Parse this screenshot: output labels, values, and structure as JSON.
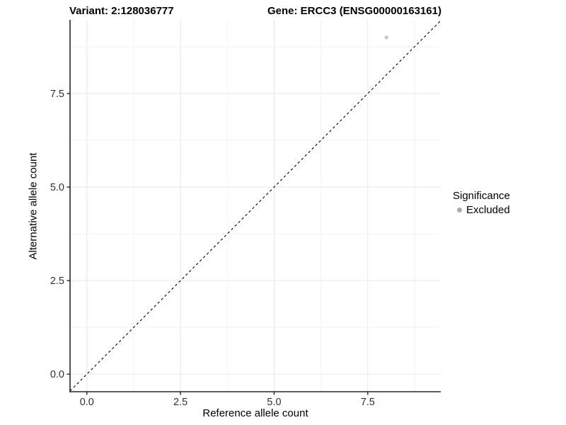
{
  "header": {
    "variant_title": "Variant: 2:128036777",
    "gene_title": "Gene: ERCC3 (ENSG00000163161)"
  },
  "chart_data": {
    "type": "scatter",
    "title_left": "Variant: 2:128036777",
    "title_right": "Gene: ERCC3 (ENSG00000163161)",
    "xlabel": "Reference allele count",
    "ylabel": "Alternative allele count",
    "xlim": [
      -0.45,
      9.45
    ],
    "ylim": [
      -0.47,
      9.47
    ],
    "x_ticks": [
      0.0,
      2.5,
      5.0,
      7.5
    ],
    "x_tick_labels": [
      "0.0",
      "2.5",
      "5.0",
      "7.5"
    ],
    "y_ticks": [
      0.0,
      2.5,
      5.0,
      7.5
    ],
    "y_tick_labels": [
      "0.0",
      "2.5",
      "5.0",
      "7.5"
    ],
    "x_minor_ticks": [
      1.25,
      3.75,
      6.25,
      8.75
    ],
    "y_minor_ticks": [
      1.25,
      3.75,
      6.25,
      8.75
    ],
    "grid": "major+minor",
    "series": [
      {
        "name": "Excluded",
        "points": [
          {
            "x": 8,
            "y": 9
          }
        ],
        "color": "#c4c4c4",
        "point_radius": 2.6
      }
    ],
    "reference_line": {
      "type": "identity y=x",
      "style": "dashed",
      "color": "#000000"
    },
    "legend": {
      "title": "Significance",
      "position": "right",
      "items": [
        {
          "label": "Excluded",
          "color": "#ababab"
        }
      ]
    },
    "colors": {
      "panel_background": "#ffffff",
      "grid_major": "#e7e7e7",
      "grid_minor": "#f3f3f3",
      "axis_line": "#262626",
      "tick_mark": "#262626",
      "tick_label": "#303030"
    }
  }
}
